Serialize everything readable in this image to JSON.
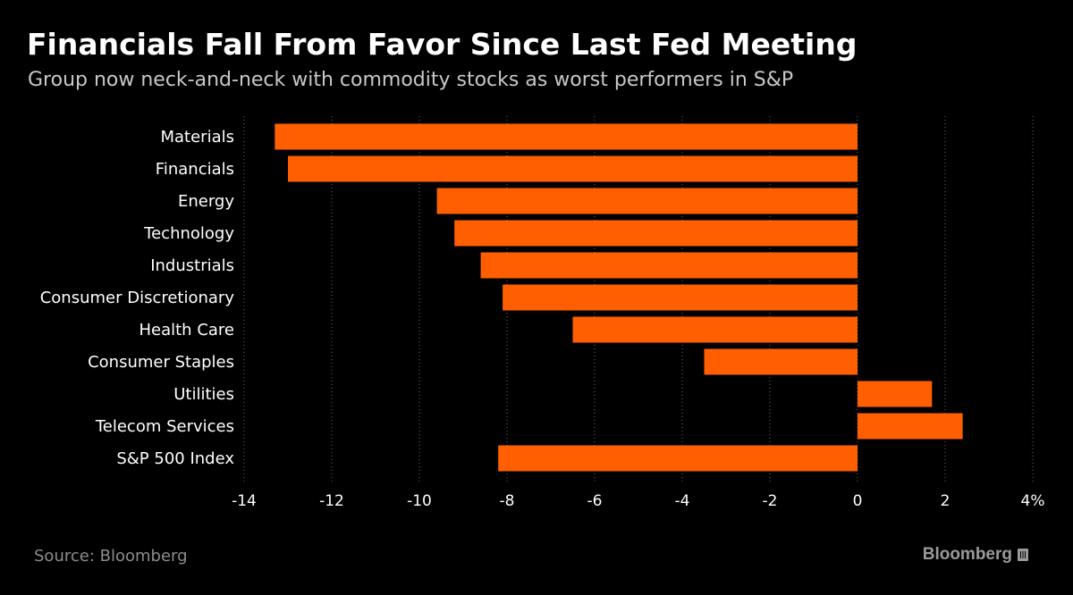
{
  "header": {
    "title": "Financials Fall From Favor Since Last Fed Meeting",
    "subtitle": "Group now neck-and-neck with commodity stocks as worst performers in S&P"
  },
  "footer": {
    "source": "Source: Bloomberg",
    "brand": "Bloomberg"
  },
  "colors": {
    "bar": "#ff5f00",
    "background": "#000000",
    "grid": "#6a6a6a"
  },
  "chart_data": {
    "type": "bar",
    "orientation": "horizontal",
    "categories": [
      "Materials",
      "Financials",
      "Energy",
      "Technology",
      "Industrials",
      "Consumer Discretionary",
      "Health Care",
      "Consumer Staples",
      "Utilities",
      "Telecom Services",
      "S&P 500 Index"
    ],
    "values": [
      -13.3,
      -13.0,
      -9.6,
      -9.2,
      -8.6,
      -8.1,
      -6.5,
      -3.5,
      1.7,
      2.4,
      -8.2
    ],
    "xlim": [
      -14,
      4
    ],
    "x_ticks": [
      -14,
      -12,
      -10,
      -8,
      -6,
      -4,
      -2,
      0,
      2,
      4
    ],
    "x_tick_labels": [
      "-14",
      "-12",
      "-10",
      "-8",
      "-6",
      "-4",
      "-2",
      "0",
      "2",
      "4%"
    ],
    "grid": "vertical dotted"
  }
}
